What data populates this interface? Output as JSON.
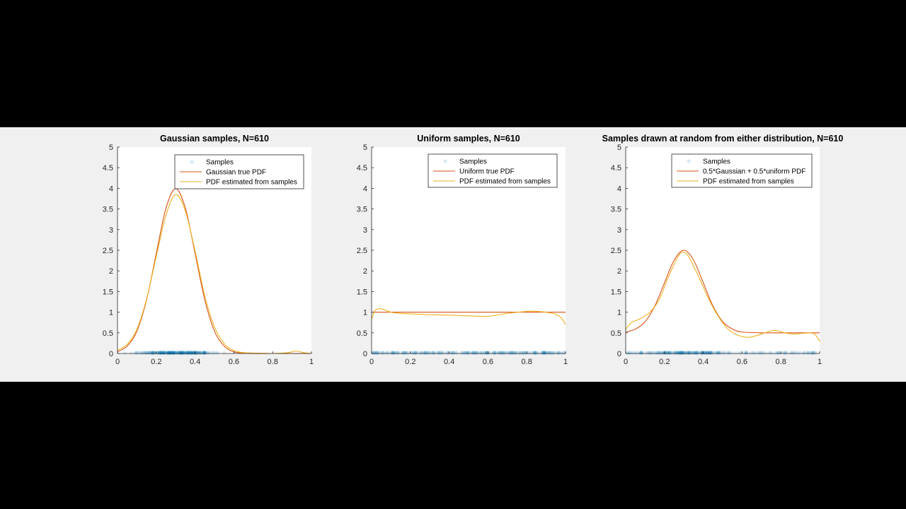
{
  "colors": {
    "samples": "#0072bd",
    "true_pdf": "#d95319",
    "estimated_pdf": "#edb120",
    "figure_bg": "#f0f0f0",
    "axes_bg": "#ffffff"
  },
  "chart_data": [
    {
      "type": "line",
      "title": "Gaussian samples, N=610",
      "xlim": [
        0,
        1
      ],
      "ylim": [
        0,
        5
      ],
      "xticks": [
        0,
        0.2,
        0.4,
        0.6,
        0.8,
        1
      ],
      "xtick_labels": [
        "0",
        "0.2",
        "0.4",
        "0.6",
        "0.8",
        "1"
      ],
      "yticks": [
        0,
        0.5,
        1,
        1.5,
        2,
        2.5,
        3,
        3.5,
        4,
        4.5,
        5
      ],
      "ytick_labels": [
        "0",
        "0.5",
        "1",
        "1.5",
        "2",
        "2.5",
        "3",
        "3.5",
        "4",
        "4.5",
        "5"
      ],
      "grid": false,
      "legend_position": "top-right",
      "samples": {
        "name": "Samples",
        "type": "scatter",
        "y": 0,
        "range": [
          0.02,
          0.6
        ],
        "note_free_visual": "dense near 0.3"
      },
      "series": [
        {
          "name": "Gaussian true PDF",
          "role": "true",
          "x": [
            0,
            0.05,
            0.1,
            0.15,
            0.2,
            0.25,
            0.3,
            0.35,
            0.4,
            0.45,
            0.5,
            0.55,
            0.6,
            0.65,
            0.7,
            0.8,
            0.9,
            1
          ],
          "y": [
            0.04,
            0.18,
            0.54,
            1.3,
            2.42,
            3.52,
            3.99,
            3.52,
            2.42,
            1.3,
            0.54,
            0.18,
            0.04,
            0.01,
            0,
            0,
            0,
            0
          ]
        },
        {
          "name": "PDF estimated from samples",
          "role": "estimated",
          "x": [
            0,
            0.05,
            0.1,
            0.15,
            0.2,
            0.25,
            0.3,
            0.35,
            0.4,
            0.45,
            0.5,
            0.55,
            0.6,
            0.65,
            0.7,
            0.8,
            0.88,
            0.92,
            0.96,
            1
          ],
          "y": [
            0.08,
            0.22,
            0.58,
            1.32,
            2.35,
            3.35,
            3.85,
            3.45,
            2.48,
            1.4,
            0.64,
            0.24,
            0.07,
            0.02,
            0.01,
            0,
            0.02,
            0.06,
            0.02,
            0
          ]
        }
      ]
    },
    {
      "type": "line",
      "title": "Uniform samples, N=610",
      "xlim": [
        0,
        1
      ],
      "ylim": [
        0,
        5
      ],
      "xticks": [
        0,
        0.2,
        0.4,
        0.6,
        0.8,
        1
      ],
      "xtick_labels": [
        "0",
        "0.2",
        "0.4",
        "0.6",
        "0.8",
        "1"
      ],
      "yticks": [
        0,
        0.5,
        1,
        1.5,
        2,
        2.5,
        3,
        3.5,
        4,
        4.5,
        5
      ],
      "ytick_labels": [
        "0",
        "0.5",
        "1",
        "1.5",
        "2",
        "2.5",
        "3",
        "3.5",
        "4",
        "4.5",
        "5"
      ],
      "grid": false,
      "legend_position": "top-right",
      "samples": {
        "name": "Samples",
        "type": "scatter",
        "y": 0,
        "range": [
          0,
          1
        ]
      },
      "series": [
        {
          "name": "Uniform true PDF",
          "role": "true",
          "x": [
            0,
            1
          ],
          "y": [
            1,
            1
          ]
        },
        {
          "name": "PDF estimated from samples",
          "role": "estimated",
          "x": [
            0,
            0.02,
            0.05,
            0.1,
            0.15,
            0.2,
            0.3,
            0.4,
            0.5,
            0.6,
            0.7,
            0.8,
            0.85,
            0.9,
            0.95,
            0.98,
            1
          ],
          "y": [
            0.84,
            1.05,
            1.08,
            1.0,
            0.97,
            0.96,
            0.94,
            0.93,
            0.91,
            0.9,
            0.97,
            1.02,
            1.02,
            1.0,
            0.95,
            0.85,
            0.7
          ]
        }
      ]
    },
    {
      "type": "line",
      "title": "Samples drawn at random from either distribution, N=610",
      "xlim": [
        0,
        1
      ],
      "ylim": [
        0,
        5
      ],
      "xticks": [
        0,
        0.2,
        0.4,
        0.6,
        0.8,
        1
      ],
      "xtick_labels": [
        "0",
        "0.2",
        "0.4",
        "0.6",
        "0.8",
        "1"
      ],
      "yticks": [
        0,
        0.5,
        1,
        1.5,
        2,
        2.5,
        3,
        3.5,
        4,
        4.5,
        5
      ],
      "ytick_labels": [
        "0",
        "0.5",
        "1",
        "1.5",
        "2",
        "2.5",
        "3",
        "3.5",
        "4",
        "4.5",
        "5"
      ],
      "grid": false,
      "legend_position": "top-right",
      "samples": {
        "name": "Samples",
        "type": "scatter",
        "y": 0,
        "range": [
          0,
          1
        ]
      },
      "series": [
        {
          "name": "0.5*Gaussian + 0.5*uniform PDF",
          "role": "true",
          "x": [
            0,
            0.05,
            0.1,
            0.15,
            0.2,
            0.25,
            0.3,
            0.35,
            0.4,
            0.45,
            0.5,
            0.55,
            0.6,
            0.7,
            0.8,
            0.9,
            1
          ],
          "y": [
            0.52,
            0.59,
            0.77,
            1.15,
            1.71,
            2.26,
            2.5,
            2.26,
            1.71,
            1.15,
            0.77,
            0.59,
            0.52,
            0.5,
            0.5,
            0.5,
            0.5
          ]
        },
        {
          "name": "PDF estimated from samples",
          "role": "estimated",
          "x": [
            0,
            0.03,
            0.07,
            0.12,
            0.17,
            0.22,
            0.27,
            0.3,
            0.33,
            0.38,
            0.43,
            0.48,
            0.53,
            0.58,
            0.63,
            0.68,
            0.73,
            0.77,
            0.82,
            0.87,
            0.92,
            0.97,
            1
          ],
          "y": [
            0.58,
            0.75,
            0.83,
            0.98,
            1.28,
            1.85,
            2.35,
            2.45,
            2.3,
            1.82,
            1.3,
            0.88,
            0.58,
            0.44,
            0.39,
            0.44,
            0.52,
            0.56,
            0.5,
            0.47,
            0.49,
            0.48,
            0.3
          ]
        }
      ]
    }
  ]
}
